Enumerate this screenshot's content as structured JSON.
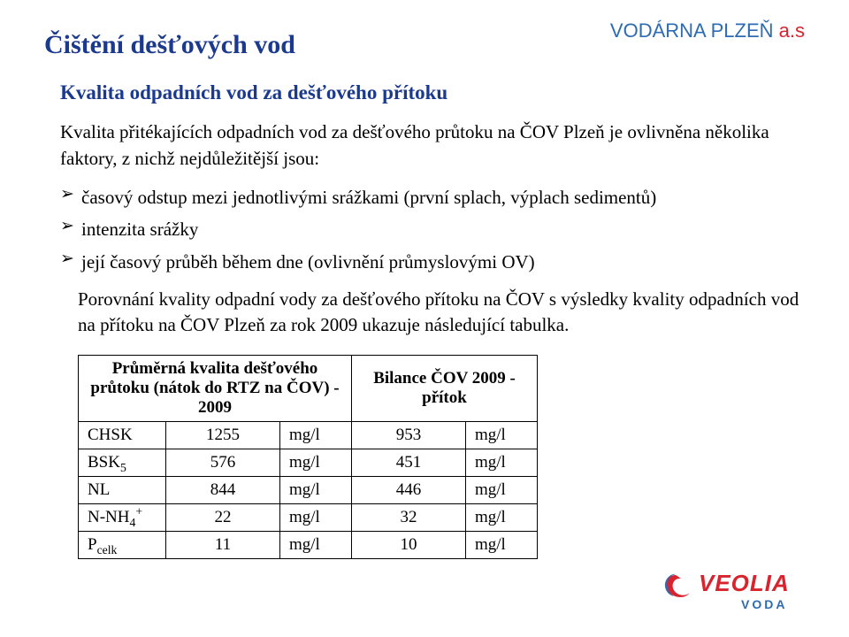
{
  "brand": {
    "blue_text": "VODÁRNA PLZEŇ ",
    "red_text": "a.s",
    "fontsize": 22
  },
  "title": {
    "text": "Čištění dešťových vod",
    "fontsize": 30
  },
  "subtitle": {
    "text": "Kvalita odpadních vod za dešťového přítoku",
    "fontsize": 23
  },
  "intro": {
    "text": "Kvalita přitékajících odpadních vod za dešťového průtoku na ČOV Plzeň je ovlivněna několika faktory, z nichž nejdůležitější jsou:",
    "fontsize": 21
  },
  "bullets": {
    "fontsize": 21,
    "items": [
      "časový odstup mezi jednotlivými srážkami (první splach, výplach sedimentů)",
      "intenzita srážky",
      "její časový průběh během dne (ovlivnění průmyslovými OV)"
    ]
  },
  "desc": {
    "text": "Porovnání kvality odpadní vody za dešťového přítoku na ČOV s výsledky kvality odpadních vod na přítoku na ČOV Plzeň za rok 2009 ukazuje následující tabulka.",
    "fontsize": 21
  },
  "table": {
    "fontsize": 19,
    "header_left": "Průměrná kvalita dešťového průtoku (nátok do RTZ na ČOV) - 2009",
    "header_right": "Bilance ČOV 2009 - přítok",
    "rows": [
      {
        "param_html": "CHSK",
        "v1": "1255",
        "u1": "mg/l",
        "v2": "953",
        "u2": "mg/l"
      },
      {
        "param_html": "BSK<sub>5</sub>",
        "v1": "576",
        "u1": "mg/l",
        "v2": "451",
        "u2": "mg/l"
      },
      {
        "param_html": "NL",
        "v1": "844",
        "u1": "mg/l",
        "v2": "446",
        "u2": "mg/l"
      },
      {
        "param_html": "N-NH<sub>4</sub><sup>+</sup>",
        "v1": "22",
        "u1": "mg/l",
        "v2": "32",
        "u2": "mg/l"
      },
      {
        "param_html": "P<sub>celk</sub>",
        "v1": "11",
        "u1": "mg/l",
        "v2": "10",
        "u2": "mg/l"
      }
    ]
  },
  "logo": {
    "name": "VEOLIA",
    "sub": "VODA",
    "name_color": "#d8242f",
    "sub_color": "#2e6bb3"
  }
}
